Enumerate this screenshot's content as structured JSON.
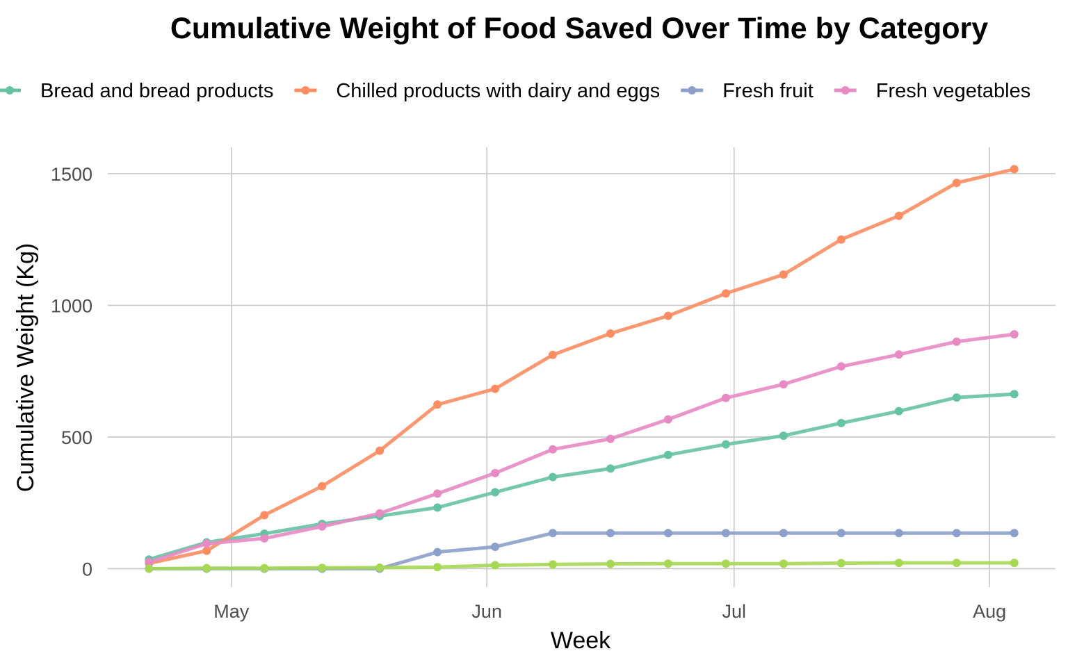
{
  "chart_data": {
    "type": "line",
    "title": "Cumulative Weight of Food Saved Over Time by Category",
    "xlabel": "Week",
    "ylabel": "Cumulative Weight (Kg)",
    "x": [
      "2024-04-21",
      "2024-04-28",
      "2024-05-05",
      "2024-05-12",
      "2024-05-19",
      "2024-05-26",
      "2024-06-02",
      "2024-06-09",
      "2024-06-16",
      "2024-06-23",
      "2024-06-30",
      "2024-07-07",
      "2024-07-14",
      "2024-07-21",
      "2024-07-28",
      "2024-08-04"
    ],
    "x_ticks": [
      {
        "label": "May",
        "date": "2024-05-01"
      },
      {
        "label": "Jun",
        "date": "2024-06-01"
      },
      {
        "label": "Jul",
        "date": "2024-07-01"
      },
      {
        "label": "Aug",
        "date": "2024-08-01"
      }
    ],
    "xlim": [
      "2024-04-16",
      "2024-08-09"
    ],
    "ylim": [
      -70,
      1600
    ],
    "y_ticks": [
      0,
      500,
      1000,
      1500
    ],
    "grid": true,
    "legend_position": "top",
    "series": [
      {
        "name": "Bread and bread products",
        "color": "#66c2a5",
        "values": [
          35,
          100,
          133,
          170,
          200,
          232,
          290,
          348,
          380,
          432,
          472,
          505,
          553,
          598,
          650,
          663
        ]
      },
      {
        "name": "Chilled products with dairy and eggs",
        "color": "#fc8d62",
        "values": [
          20,
          68,
          203,
          313,
          448,
          623,
          683,
          812,
          893,
          960,
          1045,
          1117,
          1250,
          1340,
          1465,
          1517
        ]
      },
      {
        "name": "Fresh fruit",
        "color": "#8da0cb",
        "values": [
          0,
          0,
          0,
          0,
          0,
          63,
          83,
          135,
          135,
          135,
          135,
          135,
          135,
          135,
          135,
          135
        ]
      },
      {
        "name": "Fresh vegetables",
        "color": "#e78ac3",
        "values": [
          25,
          95,
          115,
          160,
          210,
          285,
          363,
          453,
          493,
          567,
          648,
          700,
          768,
          813,
          862,
          890
        ]
      },
      {
        "name": "",
        "color": "#a6d854",
        "values": [
          0,
          2,
          2,
          3,
          4,
          6,
          13,
          16,
          18,
          19,
          19,
          19,
          21,
          22,
          22,
          22
        ]
      }
    ]
  }
}
